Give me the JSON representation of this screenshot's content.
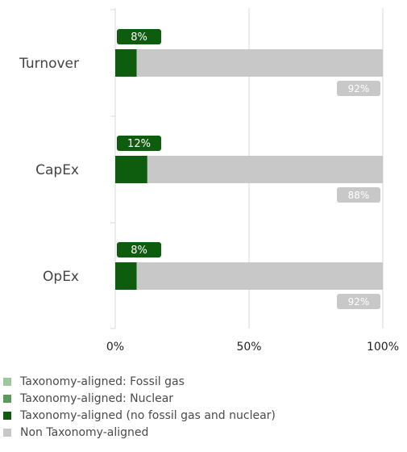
{
  "chart_data": {
    "type": "bar",
    "orientation": "horizontal",
    "stacked": true,
    "categories": [
      "Turnover",
      "CapEx",
      "OpEx"
    ],
    "series": [
      {
        "name": "Taxonomy-aligned: Fossil gas",
        "color": "#9dc79d",
        "values": [
          0,
          0,
          0
        ]
      },
      {
        "name": "Taxonomy-aligned: Nuclear",
        "color": "#5c9a5c",
        "values": [
          0,
          0,
          0
        ]
      },
      {
        "name": "Taxonomy-aligned (no fossil gas and nuclear)",
        "color": "#0e5c0e",
        "values": [
          8,
          12,
          8
        ]
      },
      {
        "name": "Non Taxonomy-aligned",
        "color": "#c8c8c8",
        "values": [
          92,
          88,
          92
        ]
      }
    ],
    "data_labels": {
      "aligned": [
        "8%",
        "12%",
        "8%"
      ],
      "non_aligned": [
        "92%",
        "88%",
        "92%"
      ]
    },
    "x_ticks": [
      "0%",
      "50%",
      "100%"
    ],
    "xlim": [
      0,
      100
    ],
    "grid": true,
    "legend_position": "bottom-left"
  }
}
